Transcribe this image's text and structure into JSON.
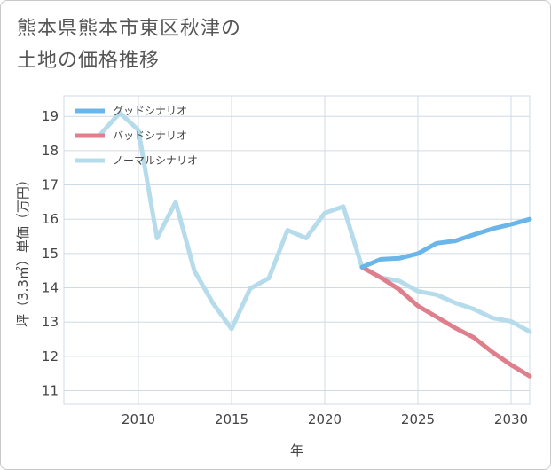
{
  "title_lines": [
    "熊本県熊本市東区秋津の",
    "土地の価格推移"
  ],
  "chart_data": {
    "type": "line",
    "xlabel": "年",
    "ylabel": "坪（3.3㎡）単価（万円）",
    "xlim": [
      2006,
      2031
    ],
    "ylim": [
      10.6,
      19.6
    ],
    "xticks": [
      2010,
      2015,
      2020,
      2025,
      2030
    ],
    "yticks": [
      11,
      12,
      13,
      14,
      15,
      16,
      17,
      18,
      19
    ],
    "grid": true,
    "legend_position": "top-left",
    "series": [
      {
        "name": "グッドシナリオ",
        "color": "#6ab6e8",
        "x": [
          2022,
          2023,
          2024,
          2025,
          2026,
          2027,
          2028,
          2029,
          2030,
          2031
        ],
        "y": [
          14.6,
          14.83,
          14.86,
          15.0,
          15.3,
          15.37,
          15.55,
          15.72,
          15.85,
          16.0
        ]
      },
      {
        "name": "バッドシナリオ",
        "color": "#df7f8b",
        "x": [
          2022,
          2023,
          2024,
          2025,
          2026,
          2027,
          2028,
          2029,
          2030,
          2031
        ],
        "y": [
          14.6,
          14.3,
          13.95,
          13.47,
          13.15,
          12.83,
          12.55,
          12.12,
          11.75,
          11.42
        ]
      },
      {
        "name": "ノーマルシナリオ",
        "color": "#b6dcec",
        "x": [
          2008,
          2009,
          2010,
          2011,
          2012,
          2013,
          2014,
          2015,
          2016,
          2017,
          2018,
          2019,
          2020,
          2021,
          2022,
          2023,
          2024,
          2025,
          2026,
          2027,
          2028,
          2029,
          2030,
          2031
        ],
        "y": [
          18.5,
          19.1,
          18.6,
          15.45,
          16.5,
          14.5,
          13.55,
          12.8,
          13.98,
          14.28,
          15.68,
          15.45,
          16.18,
          16.37,
          14.6,
          14.3,
          14.2,
          13.9,
          13.8,
          13.56,
          13.38,
          13.12,
          13.02,
          12.72
        ]
      }
    ]
  }
}
